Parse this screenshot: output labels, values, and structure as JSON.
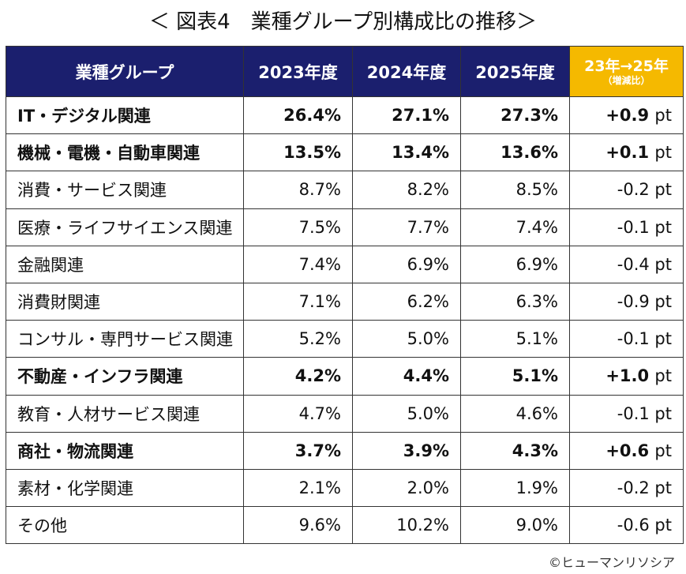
{
  "title": "＜ 図表4　業種グループ別構成比の推移＞",
  "headers": {
    "category": "業種グループ",
    "y2023": "2023年度",
    "y2024": "2024年度",
    "y2025": "2025年度",
    "change": "23年→25年",
    "change_sub": "（増減比）"
  },
  "rows": [
    {
      "name": "IT・デジタル関連",
      "y2023": "26.4%",
      "y2024": "27.1%",
      "y2025": "27.3%",
      "change": "+0.9",
      "unit": "pt",
      "bold": true
    },
    {
      "name": "機械・電機・自動車関連",
      "y2023": "13.5%",
      "y2024": "13.4%",
      "y2025": "13.6%",
      "change": "+0.1",
      "unit": "pt",
      "bold": true
    },
    {
      "name": "消費・サービス関連",
      "y2023": "8.7%",
      "y2024": "8.2%",
      "y2025": "8.5%",
      "change": "-0.2",
      "unit": "pt",
      "bold": false
    },
    {
      "name": "医療・ライフサイエンス関連",
      "y2023": "7.5%",
      "y2024": "7.7%",
      "y2025": "7.4%",
      "change": "-0.1",
      "unit": "pt",
      "bold": false
    },
    {
      "name": "金融関連",
      "y2023": "7.4%",
      "y2024": "6.9%",
      "y2025": "6.9%",
      "change": "-0.4",
      "unit": "pt",
      "bold": false
    },
    {
      "name": "消費財関連",
      "y2023": "7.1%",
      "y2024": "6.2%",
      "y2025": "6.3%",
      "change": "-0.9",
      "unit": "pt",
      "bold": false
    },
    {
      "name": "コンサル・専門サービス関連",
      "y2023": "5.2%",
      "y2024": "5.0%",
      "y2025": "5.1%",
      "change": "-0.1",
      "unit": "pt",
      "bold": false
    },
    {
      "name": "不動産・インフラ関連",
      "y2023": "4.2%",
      "y2024": "4.4%",
      "y2025": "5.1%",
      "change": "+1.0",
      "unit": "pt",
      "bold": true
    },
    {
      "name": "教育・人材サービス関連",
      "y2023": "4.7%",
      "y2024": "5.0%",
      "y2025": "4.6%",
      "change": "-0.1",
      "unit": "pt",
      "bold": false
    },
    {
      "name": "商社・物流関連",
      "y2023": "3.7%",
      "y2024": "3.9%",
      "y2025": "4.3%",
      "change": "+0.6",
      "unit": "pt",
      "bold": true
    },
    {
      "name": "素材・化学関連",
      "y2023": "2.1%",
      "y2024": "2.0%",
      "y2025": "1.9%",
      "change": "-0.2",
      "unit": "pt",
      "bold": false
    },
    {
      "name": "その他",
      "y2023": "9.6%",
      "y2024": "10.2%",
      "y2025": "9.0%",
      "change": "-0.6",
      "unit": "pt",
      "bold": false
    }
  ],
  "colors": {
    "header_bg": "#1b1f6e",
    "highlight_bg": "#f5b900",
    "header_text": "#ffffff"
  },
  "copyright": "©ヒューマンリソシア"
}
